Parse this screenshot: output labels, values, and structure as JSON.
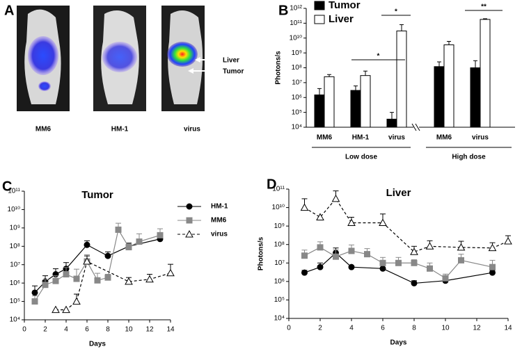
{
  "panel_a": {
    "letter": "A",
    "labels": [
      "MM6",
      "HM-1",
      "virus"
    ],
    "arrows": [
      "Liver",
      "Tumor"
    ]
  },
  "chart_data": [
    {
      "type": "bar",
      "letter": "B",
      "ylabel": "Photons/s",
      "log_scale": true,
      "groups": [
        {
          "name": "Low dose",
          "categories": [
            "MM6",
            "HM-1",
            "virus"
          ]
        },
        {
          "name": "High dose",
          "categories": [
            "MM6",
            "virus"
          ]
        }
      ],
      "series": [
        {
          "name": "Tumor",
          "color": "#000000",
          "values": [
            1500000,
            3000000,
            35000,
            120000000,
            100000000
          ],
          "errors": [
            2500000,
            3000000,
            65000,
            130000000,
            200000000
          ]
        },
        {
          "name": "Liver",
          "color": "#ffffff",
          "values": [
            25000000,
            30000000,
            30000000000,
            3500000000,
            180000000000
          ],
          "errors": [
            10000000,
            30000000,
            50000000000,
            2500000000,
            20000000000
          ]
        }
      ],
      "annotations": [
        "*",
        "*",
        "**"
      ],
      "ylim": [
        10000,
        1000000000000
      ],
      "yticks": [
        {
          "value": 10000,
          "label": "10⁴"
        },
        {
          "value": 100000,
          "label": "10⁵"
        },
        {
          "value": 1000000,
          "label": "10⁶"
        },
        {
          "value": 10000000,
          "label": "10⁷"
        },
        {
          "value": 100000000,
          "label": "10⁸"
        },
        {
          "value": 1000000000,
          "label": "10⁹"
        },
        {
          "value": 10000000000,
          "label": "10¹⁰"
        },
        {
          "value": 100000000000,
          "label": "10¹¹"
        },
        {
          "value": 1000000000000,
          "label": "10¹²"
        }
      ]
    },
    {
      "type": "line",
      "letter": "C",
      "title": "Tumor",
      "xlabel": "Days",
      "ylabel": "Photons/s",
      "log_scale": true,
      "legend": "upper right",
      "xlim": [
        0,
        14
      ],
      "xticks": [
        0,
        2,
        4,
        6,
        8,
        10,
        12,
        14
      ],
      "ylim": [
        10000,
        100000000000
      ],
      "yticks": [
        {
          "value": 10000,
          "label": "10⁴"
        },
        {
          "value": 100000,
          "label": "10⁵"
        },
        {
          "value": 1000000,
          "label": "10⁶"
        },
        {
          "value": 10000000,
          "label": "10⁷"
        },
        {
          "value": 100000000,
          "label": "10⁸"
        },
        {
          "value": 1000000000,
          "label": "10⁹"
        },
        {
          "value": 10000000000,
          "label": "10¹⁰"
        },
        {
          "value": 100000000000,
          "label": "10¹¹"
        }
      ],
      "series": [
        {
          "name": "HM-1",
          "color": "#000000",
          "marker": "circle",
          "dashed": false,
          "x": [
            1,
            2,
            3,
            4,
            6,
            8,
            10,
            13
          ],
          "values": [
            300000,
            1200000,
            3000000,
            6000000,
            120000000,
            30000000,
            100000000,
            250000000
          ],
          "errors": [
            400000,
            1300000,
            3000000,
            7000000,
            80000000,
            20000000,
            50000000,
            150000000
          ]
        },
        {
          "name": "MM6",
          "color": "#888888",
          "marker": "square",
          "dashed": false,
          "x": [
            1,
            2,
            3,
            4,
            5,
            6,
            7,
            8,
            9,
            10,
            11,
            13
          ],
          "values": [
            100000,
            800000,
            1300000,
            3000000,
            1700000,
            15000000,
            1400000,
            2000000,
            800000000,
            90000000,
            180000000,
            400000000
          ],
          "errors": [
            100000,
            700000,
            1200000,
            4000000,
            4000000,
            20000000,
            2000000,
            1000000,
            1000000000,
            50000000,
            300000000,
            500000000
          ]
        },
        {
          "name": "virus",
          "color": "#000000",
          "marker": "triangle",
          "dashed": true,
          "x": [
            3,
            4,
            5,
            6,
            10,
            12,
            14
          ],
          "values": [
            35000,
            35000,
            100000,
            15000000,
            1200000,
            1600000,
            3500000
          ],
          "errors": [
            null,
            null,
            150000,
            15000000,
            800000,
            1400000,
            7000000
          ]
        }
      ]
    },
    {
      "type": "line",
      "letter": "D",
      "title": "Liver",
      "xlabel": "Days",
      "ylabel": "Photons/s",
      "log_scale": true,
      "xlim": [
        0,
        14
      ],
      "xticks": [
        0,
        2,
        4,
        6,
        8,
        10,
        12,
        14
      ],
      "ylim": [
        10000,
        100000000000
      ],
      "yticks": [
        {
          "value": 10000,
          "label": "10⁴"
        },
        {
          "value": 100000,
          "label": "10⁵"
        },
        {
          "value": 1000000,
          "label": "10⁶"
        },
        {
          "value": 10000000,
          "label": "10⁷"
        },
        {
          "value": 100000000,
          "label": "10⁸"
        },
        {
          "value": 1000000000,
          "label": "10⁹"
        },
        {
          "value": 10000000000,
          "label": "10¹⁰"
        },
        {
          "value": 100000000000,
          "label": "10¹¹"
        }
      ],
      "series": [
        {
          "color": "#000000",
          "marker": "circle",
          "dashed": false,
          "x": [
            1,
            2,
            3,
            4,
            6,
            8,
            10,
            13
          ],
          "values": [
            3000000,
            6000000,
            35000000,
            6000000,
            5000000,
            800000,
            1100000,
            3000000
          ],
          "errors": [
            1000000,
            4000000,
            30000000,
            null,
            null,
            300000,
            300000,
            1000000
          ]
        },
        {
          "color": "#888888",
          "marker": "square",
          "dashed": false,
          "x": [
            1,
            2,
            3,
            4,
            5,
            6,
            7,
            8,
            9,
            10,
            11,
            13
          ],
          "values": [
            25000000,
            70000000,
            22000000,
            45000000,
            30000000,
            10000000,
            10000000,
            10000000,
            5000000,
            1500000,
            14000000,
            6000000
          ],
          "errors": [
            25000000,
            70000000,
            30000000,
            50000000,
            30000000,
            10000000,
            10000000,
            5000000,
            5000000,
            1000000,
            16000000,
            8000000
          ]
        },
        {
          "color": "#000000",
          "marker": "triangle",
          "dashed": true,
          "x": [
            1,
            2,
            3,
            4,
            6,
            8,
            9,
            11,
            13,
            14
          ],
          "values": [
            10000000000,
            3000000000,
            30000000000,
            1500000000,
            1500000000,
            40000000,
            80000000,
            70000000,
            65000000,
            150000000
          ],
          "errors": [
            20000000000,
            null,
            50000000000,
            1500000000,
            3000000000,
            40000000,
            80000000,
            80000000,
            60000000,
            150000000
          ]
        }
      ]
    }
  ]
}
